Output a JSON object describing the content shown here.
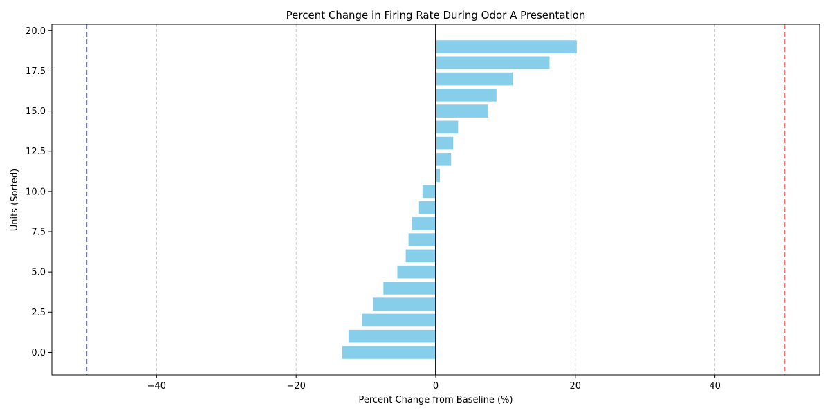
{
  "chart_data": {
    "type": "bar",
    "orientation": "horizontal",
    "title": "Percent Change in Firing Rate During Odor A Presentation",
    "xlabel": "Percent Change from Baseline (%)",
    "ylabel": "Units (Sorted)",
    "xlim": [
      -55,
      55
    ],
    "ylim": [
      -1.4,
      20.4
    ],
    "xticks": [
      -40,
      -20,
      0,
      20,
      40
    ],
    "xtick_labels": [
      "−40",
      "−20",
      "0",
      "20",
      "40"
    ],
    "yticks": [
      0,
      2.5,
      5,
      7.5,
      10,
      12.5,
      15,
      17.5,
      20
    ],
    "ytick_labels": [
      "0.0",
      "2.5",
      "5.0",
      "7.5",
      "10.0",
      "12.5",
      "15.0",
      "17.5",
      "20.0"
    ],
    "grid": "x-dashed",
    "bar_color": "#87CEEB",
    "y": [
      0,
      1,
      2,
      3,
      4,
      5,
      6,
      7,
      8,
      9,
      10,
      11,
      12,
      13,
      14,
      15,
      16,
      17,
      18,
      19
    ],
    "values": [
      -13.4,
      -12.5,
      -10.6,
      -9.0,
      -7.5,
      -5.5,
      -4.3,
      -3.9,
      -3.4,
      -2.4,
      -1.9,
      0.6,
      2.2,
      2.5,
      3.2,
      7.5,
      8.7,
      11.0,
      16.3,
      20.2
    ],
    "reference_lines": [
      {
        "x": -50,
        "color": "#0000CC",
        "style": "dashed"
      },
      {
        "x": 50,
        "color": "#FF0000",
        "style": "dashed"
      },
      {
        "x": 0,
        "color": "#000000",
        "style": "solid"
      }
    ]
  }
}
